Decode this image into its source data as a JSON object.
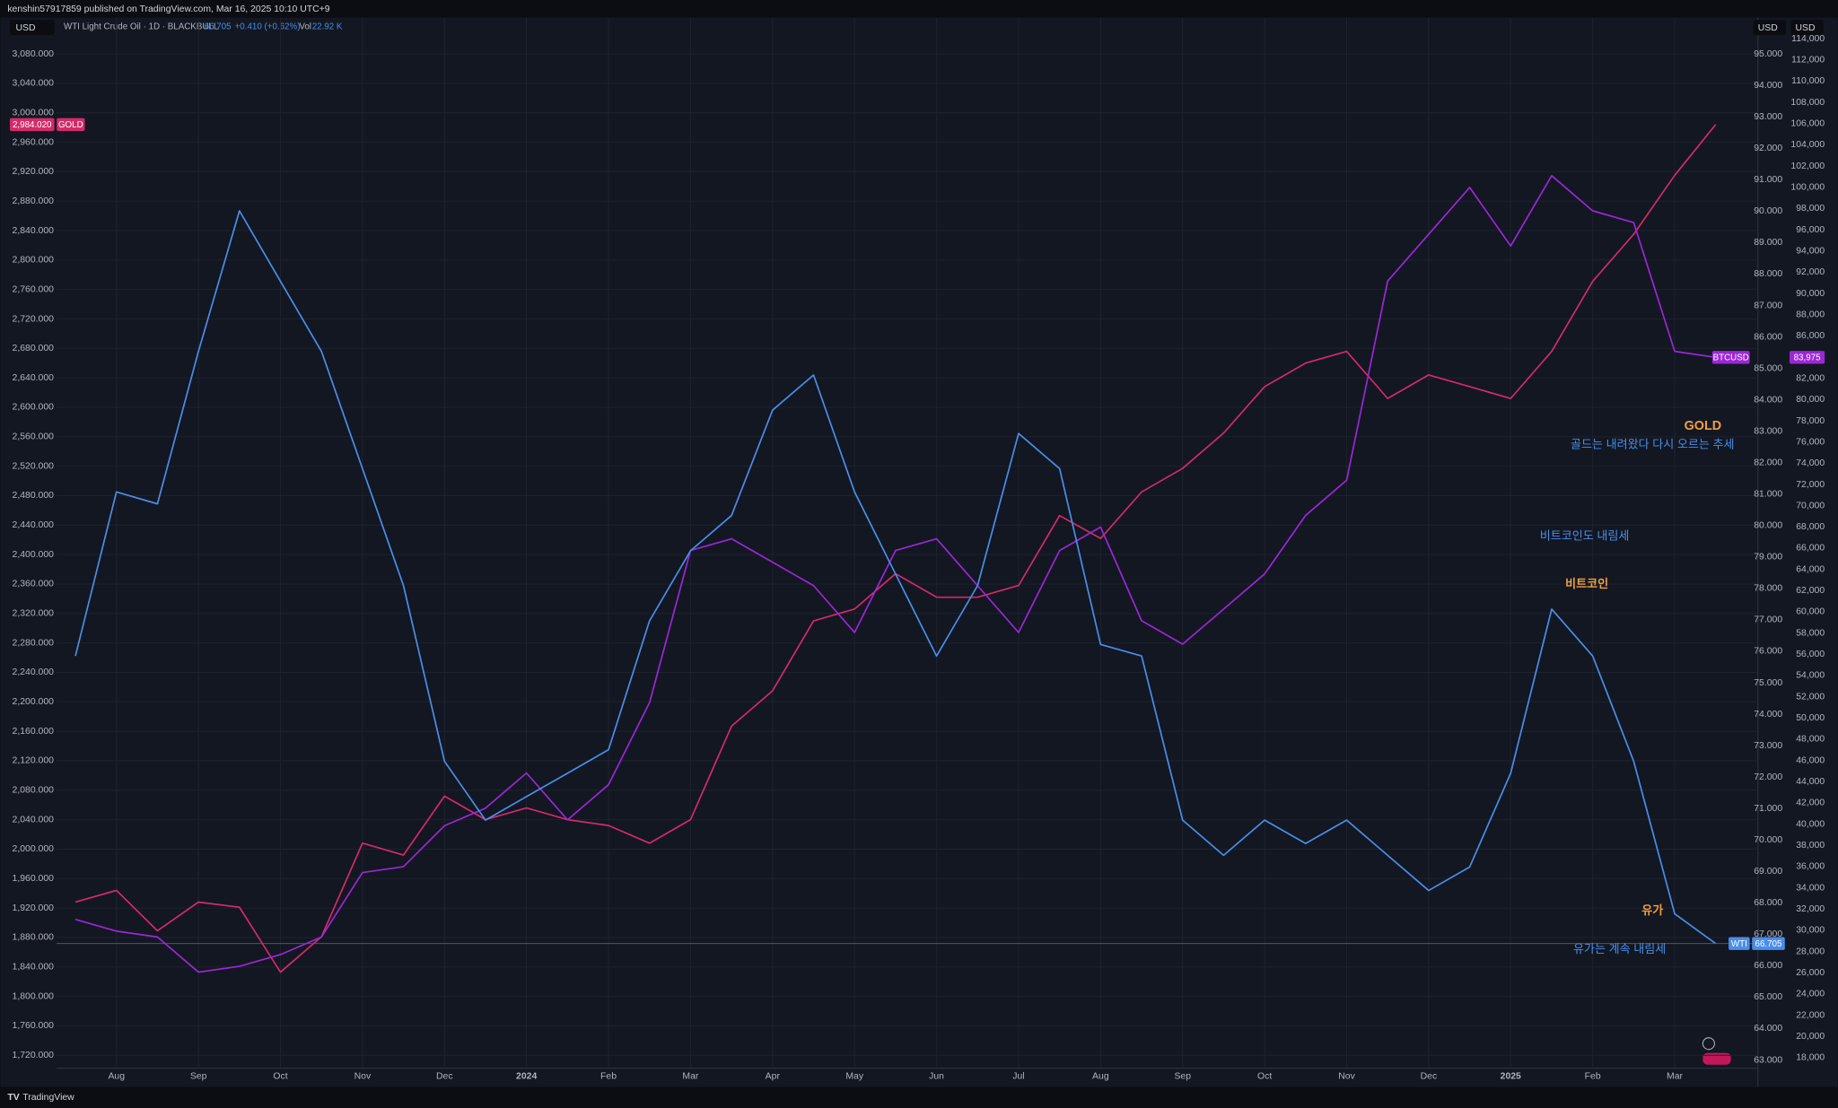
{
  "header": {
    "publisher": "kenshin57917859 published on TradingView.com, Mar 16, 2025 10:10 UTC+9"
  },
  "chart_data": {
    "type": "line",
    "legend": {
      "symbol": "WTI Light Crude Oil · 1D · BLACKBULL",
      "last": "66.705",
      "change": "+0.410 (+0.62%)",
      "vol_label": "Vol",
      "vol": "22.92 K"
    },
    "axis_units": [
      "USD",
      "USD",
      "USD"
    ],
    "grid": true,
    "categories": [
      null,
      "Aug",
      null,
      "Sep",
      null,
      "Oct",
      null,
      "Nov",
      null,
      "Dec",
      null,
      "2024",
      null,
      "Feb",
      null,
      "Mar",
      null,
      "Apr",
      null,
      "May",
      null,
      "Jun",
      null,
      "Jul",
      null,
      "Aug",
      null,
      "Sep",
      null,
      "Oct",
      null,
      "Nov",
      null,
      "Dec",
      null,
      "2025",
      null,
      "Feb",
      null,
      "Mar",
      null
    ],
    "ylim": [
      1702.5,
      3105.4
    ],
    "yticks": [
      {
        "value": 1720,
        "label": "1,720.000"
      },
      {
        "value": 1760,
        "label": "1,760.000"
      },
      {
        "value": 1800,
        "label": "1,800.000"
      },
      {
        "value": 1840,
        "label": "1,840.000"
      },
      {
        "value": 1880,
        "label": "1,880.000"
      },
      {
        "value": 1920,
        "label": "1,920.000"
      },
      {
        "value": 1960,
        "label": "1,960.000"
      },
      {
        "value": 2000,
        "label": "2,000.000"
      },
      {
        "value": 2040,
        "label": "2,040.000"
      },
      {
        "value": 2080,
        "label": "2,080.000"
      },
      {
        "value": 2120,
        "label": "2,120.000"
      },
      {
        "value": 2160,
        "label": "2,160.000"
      },
      {
        "value": 2200,
        "label": "2,200.000"
      },
      {
        "value": 2240,
        "label": "2,240.000"
      },
      {
        "value": 2280,
        "label": "2,280.000"
      },
      {
        "value": 2320,
        "label": "2,320.000"
      },
      {
        "value": 2360,
        "label": "2,360.000"
      },
      {
        "value": 2400,
        "label": "2,400.000"
      },
      {
        "value": 2440,
        "label": "2,440.000"
      },
      {
        "value": 2480,
        "label": "2,480.000"
      },
      {
        "value": 2520,
        "label": "2,520.000"
      },
      {
        "value": 2560,
        "label": "2,560.000"
      },
      {
        "value": 2600,
        "label": "2,600.000"
      },
      {
        "value": 2640,
        "label": "2,640.000"
      },
      {
        "value": 2680,
        "label": "2,680.000"
      },
      {
        "value": 2720,
        "label": "2,720.000"
      },
      {
        "value": 2760,
        "label": "2,760.000"
      },
      {
        "value": 2800,
        "label": "2,800.000"
      },
      {
        "value": 2840,
        "label": "2,840.000"
      },
      {
        "value": 2880,
        "label": "2,880.000"
      },
      {
        "value": 2920,
        "label": "2,920.000"
      },
      {
        "value": 2960,
        "label": "2,960.000"
      },
      {
        "value": 3000,
        "label": "3,000.000"
      },
      {
        "value": 3040,
        "label": "3,040.000"
      },
      {
        "value": 3080,
        "label": "3,080.000"
      }
    ],
    "y2lim": [
      62.74,
      95.6
    ],
    "y2ticks": [
      {
        "value": 63,
        "label": "63.000"
      },
      {
        "value": 64,
        "label": "64.000"
      },
      {
        "value": 65,
        "label": "65.000"
      },
      {
        "value": 66,
        "label": "66.000"
      },
      {
        "value": 67,
        "label": "67.000"
      },
      {
        "value": 68,
        "label": "68.000"
      },
      {
        "value": 69,
        "label": "69.000"
      },
      {
        "value": 70,
        "label": "70.000"
      },
      {
        "value": 71,
        "label": "71.000"
      },
      {
        "value": 72,
        "label": "72.000"
      },
      {
        "value": 73,
        "label": "73.000"
      },
      {
        "value": 74,
        "label": "74.000"
      },
      {
        "value": 75,
        "label": "75.000"
      },
      {
        "value": 76,
        "label": "76.000"
      },
      {
        "value": 77,
        "label": "77.000"
      },
      {
        "value": 78,
        "label": "78.000"
      },
      {
        "value": 79,
        "label": "79.000"
      },
      {
        "value": 80,
        "label": "80.000"
      },
      {
        "value": 81,
        "label": "81.000"
      },
      {
        "value": 82,
        "label": "82.000"
      },
      {
        "value": 83,
        "label": "83.000"
      },
      {
        "value": 84,
        "label": "84.000"
      },
      {
        "value": 85,
        "label": "85.000"
      },
      {
        "value": 86,
        "label": "86.000"
      },
      {
        "value": 87,
        "label": "87.000"
      },
      {
        "value": 88,
        "label": "88.000"
      },
      {
        "value": 89,
        "label": "89.000"
      },
      {
        "value": 90,
        "label": "90.000"
      },
      {
        "value": 91,
        "label": "91.000"
      },
      {
        "value": 92,
        "label": "92.000"
      },
      {
        "value": 93,
        "label": "93.000"
      },
      {
        "value": 94,
        "label": "94.000"
      },
      {
        "value": 95,
        "label": "95.000"
      }
    ],
    "y3lim": [
      17007,
      114331
    ],
    "y3ticks": [
      {
        "value": 18000,
        "label": "18,000"
      },
      {
        "value": 20000,
        "label": "20,000"
      },
      {
        "value": 22000,
        "label": "22,000"
      },
      {
        "value": 24000,
        "label": "24,000"
      },
      {
        "value": 26000,
        "label": "26,000"
      },
      {
        "value": 28000,
        "label": "28,000"
      },
      {
        "value": 30000,
        "label": "30,000"
      },
      {
        "value": 32000,
        "label": "32,000"
      },
      {
        "value": 34000,
        "label": "34,000"
      },
      {
        "value": 36000,
        "label": "36,000"
      },
      {
        "value": 38000,
        "label": "38,000"
      },
      {
        "value": 40000,
        "label": "40,000"
      },
      {
        "value": 42000,
        "label": "42,000"
      },
      {
        "value": 44000,
        "label": "44,000"
      },
      {
        "value": 46000,
        "label": "46,000"
      },
      {
        "value": 48000,
        "label": "48,000"
      },
      {
        "value": 50000,
        "label": "50,000"
      },
      {
        "value": 52000,
        "label": "52,000"
      },
      {
        "value": 54000,
        "label": "54,000"
      },
      {
        "value": 56000,
        "label": "56,000"
      },
      {
        "value": 58000,
        "label": "58,000"
      },
      {
        "value": 60000,
        "label": "60,000"
      },
      {
        "value": 62000,
        "label": "62,000"
      },
      {
        "value": 64000,
        "label": "64,000"
      },
      {
        "value": 66000,
        "label": "66,000"
      },
      {
        "value": 68000,
        "label": "68,000"
      },
      {
        "value": 70000,
        "label": "70,000"
      },
      {
        "value": 72000,
        "label": "72,000"
      },
      {
        "value": 74000,
        "label": "74,000"
      },
      {
        "value": 76000,
        "label": "76,000"
      },
      {
        "value": 78000,
        "label": "78,000"
      },
      {
        "value": 80000,
        "label": "80,000"
      },
      {
        "value": 82000,
        "label": "82,000"
      },
      {
        "value": 84000,
        "label": "84,000"
      },
      {
        "value": 86000,
        "label": "86,000"
      },
      {
        "value": 88000,
        "label": "88,000"
      },
      {
        "value": 90000,
        "label": "90,000"
      },
      {
        "value": 92000,
        "label": "92,000"
      },
      {
        "value": 94000,
        "label": "94,000"
      },
      {
        "value": 96000,
        "label": "96,000"
      },
      {
        "value": 98000,
        "label": "98,000"
      },
      {
        "value": 100000,
        "label": "100,000"
      },
      {
        "value": 102000,
        "label": "102,000"
      },
      {
        "value": 104000,
        "label": "104,000"
      },
      {
        "value": 106000,
        "label": "106,000"
      },
      {
        "value": 108000,
        "label": "108,000"
      },
      {
        "value": 110000,
        "label": "110,000"
      },
      {
        "value": 112000,
        "label": "112,000"
      },
      {
        "value": 114000,
        "label": "114,000"
      }
    ],
    "series": [
      {
        "name": "GOLD",
        "color": "#d42a6a",
        "axis": "y",
        "values": [
          1928,
          1944,
          1889,
          1928,
          1921,
          1833,
          1881,
          2008,
          1992,
          2072,
          2040,
          2056,
          2040,
          2032,
          2008,
          2040,
          2167,
          2215,
          2310,
          2326,
          2374,
          2342,
          2342,
          2358,
          2453,
          2422,
          2485,
          2517,
          2565,
          2628,
          2660,
          2676,
          2612,
          2644,
          2628,
          2612,
          2676,
          2771,
          2835,
          2915,
          2984.02
        ],
        "value_labels": [
          null,
          null,
          null,
          null,
          null,
          null,
          null,
          null,
          null,
          null,
          null,
          null,
          null,
          null,
          null,
          null,
          null,
          null,
          null,
          null,
          null,
          null,
          null,
          null,
          null,
          null,
          null,
          null,
          null,
          null,
          null,
          null,
          null,
          null,
          null,
          null,
          null,
          null,
          null,
          null,
          "2,984.020"
        ]
      },
      {
        "name": "BTCUSD",
        "color": "#9c27d6",
        "axis": "y3",
        "values": [
          31024,
          29921,
          29369,
          26059,
          26611,
          27714,
          29369,
          35438,
          35990,
          39852,
          41507,
          44817,
          40403,
          43713,
          51437,
          65781,
          66885,
          64678,
          62471,
          58058,
          65781,
          66885,
          62471,
          58058,
          65781,
          67988,
          59161,
          56954,
          60264,
          63575,
          69092,
          72402,
          91160,
          95573,
          99987,
          94470,
          101090,
          97780,
          96677,
          84539,
          83975
        ],
        "value_labels": [
          null,
          null,
          null,
          null,
          null,
          null,
          null,
          null,
          null,
          null,
          null,
          null,
          null,
          null,
          null,
          null,
          null,
          null,
          null,
          null,
          null,
          null,
          null,
          null,
          null,
          null,
          null,
          null,
          null,
          null,
          null,
          null,
          null,
          null,
          null,
          null,
          null,
          null,
          null,
          null,
          "83,975"
        ]
      },
      {
        "name": "WTI",
        "color": "#4a8ee8",
        "axis": "y2",
        "values": [
          75.85,
          81.07,
          80.69,
          85.54,
          90.01,
          87.77,
          85.54,
          81.81,
          78.09,
          72.5,
          70.63,
          71.38,
          72.12,
          72.87,
          76.97,
          79.2,
          80.32,
          83.67,
          84.79,
          81.07,
          78.46,
          75.85,
          78.09,
          82.93,
          81.81,
          76.22,
          75.85,
          70.63,
          69.51,
          70.63,
          69.89,
          70.63,
          69.51,
          68.39,
          69.14,
          72.12,
          77.34,
          75.85,
          72.5,
          67.65,
          66.705
        ],
        "value_labels": [
          null,
          null,
          null,
          null,
          null,
          null,
          null,
          null,
          null,
          null,
          null,
          null,
          null,
          null,
          null,
          null,
          null,
          null,
          null,
          null,
          null,
          null,
          null,
          null,
          null,
          null,
          null,
          null,
          null,
          null,
          null,
          null,
          null,
          null,
          null,
          null,
          null,
          null,
          null,
          null,
          "66.705"
        ]
      }
    ],
    "annotations": [
      {
        "text": "GOLD",
        "color": "#f0a040"
      },
      {
        "text": "골드는 내려왔다 다시 오르는 추세",
        "color": "#4a8ee8"
      },
      {
        "text": "비트코인도 내림세",
        "color": "#4a8ee8"
      },
      {
        "text": "비트코인",
        "color": "#f0a040"
      },
      {
        "text": "유가",
        "color": "#f0a040"
      },
      {
        "text": "유가는 계속 내림세",
        "color": "#4a8ee8"
      }
    ]
  },
  "footer": {
    "brand": "TradingView"
  }
}
